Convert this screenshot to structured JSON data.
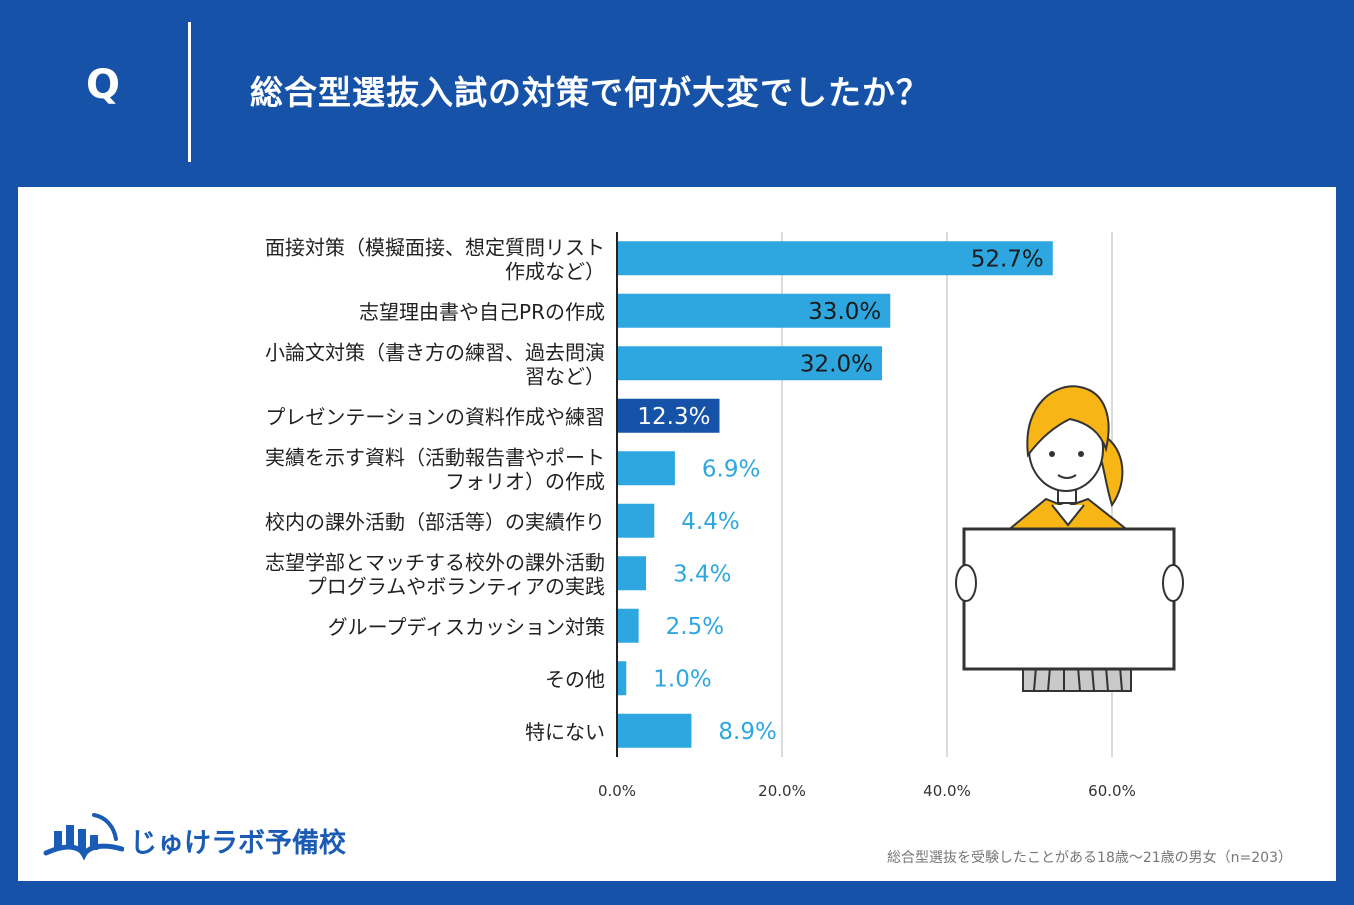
{
  "header": {
    "q_label": "Q",
    "question": "総合型選抜入試の対策で何が大変でしたか？"
  },
  "chart_data": {
    "type": "bar",
    "orientation": "horizontal",
    "title": "総合型選抜入試の対策で何が大変でしたか？",
    "categories": [
      [
        "面接対策（模擬面接、想定質問リスト",
        "作成など）"
      ],
      [
        "志望理由書や自己PRの作成"
      ],
      [
        "小論文対策（書き方の練習、過去問演",
        "習など）"
      ],
      [
        "プレゼンテーションの資料作成や練習"
      ],
      [
        "実績を示す資料（活動報告書やポート",
        "フォリオ）の作成"
      ],
      [
        "校内の課外活動（部活等）の実績作り"
      ],
      [
        "志望学部とマッチする校外の課外活動",
        "プログラムやボランティアの実践"
      ],
      [
        "グループディスカッション対策"
      ],
      [
        "その他"
      ],
      [
        "特にない"
      ]
    ],
    "values": [
      52.7,
      33.0,
      32.0,
      12.3,
      6.9,
      4.4,
      3.4,
      2.5,
      1.0,
      8.9
    ],
    "value_labels": [
      "52.7%",
      "33.0%",
      "32.0%",
      "12.3%",
      "6.9%",
      "4.4%",
      "3.4%",
      "2.5%",
      "1.0%",
      "8.9%"
    ],
    "highlight_index": 3,
    "xlim": [
      0,
      60
    ],
    "xticks": [
      0,
      20,
      40,
      60
    ],
    "xtick_labels": [
      "0.0%",
      "20.0%",
      "40.0%",
      "60.0%"
    ],
    "grid": true,
    "colors": {
      "bar": "#2ea7e0",
      "highlight": "#1552a8",
      "label_outside": "#2ea7e0",
      "label_inside": "#1a1a1a",
      "label_highlight": "#ffffff"
    }
  },
  "logo": {
    "text": "じゅけラボ予備校"
  },
  "footnote": "総合型選抜を受験したことがある18歳〜21歳の男女（n=203）",
  "colors": {
    "background": "#1552a8",
    "panel": "#ffffff"
  }
}
